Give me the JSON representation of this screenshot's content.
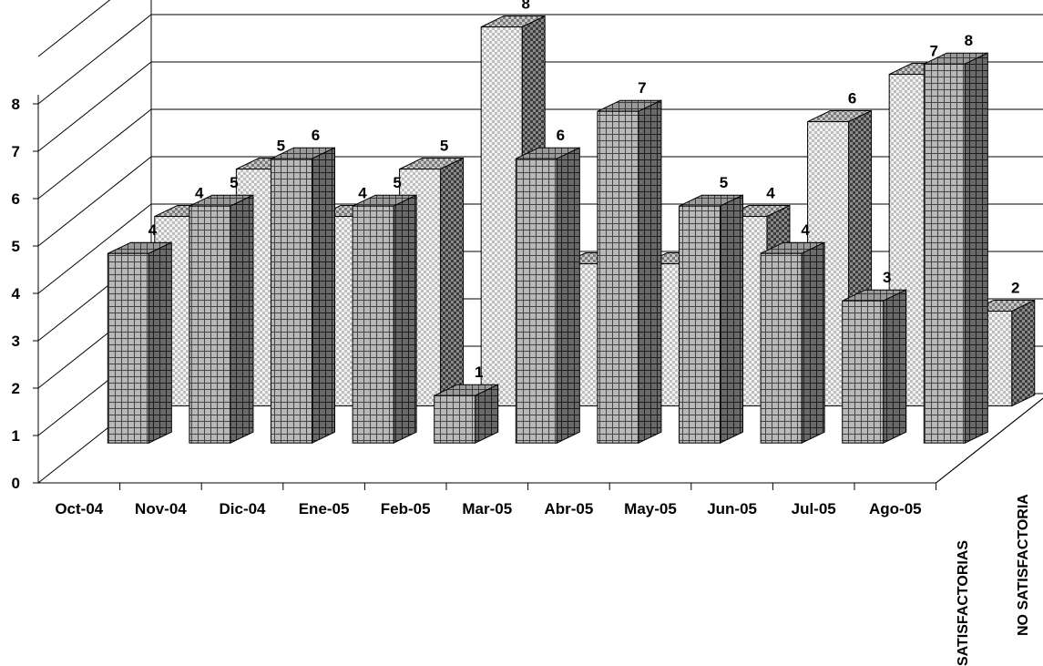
{
  "chart_data": {
    "type": "bar",
    "subtype": "3d-clustered-depth",
    "categories": [
      "Oct-04",
      "Nov-04",
      "Dic-04",
      "Ene-05",
      "Feb-05",
      "Mar-05",
      "Abr-05",
      "May-05",
      "Jun-05",
      "Jul-05",
      "Ago-05"
    ],
    "series": [
      {
        "name": "SATISFACTORIAS",
        "values": [
          4,
          5,
          6,
          5,
          1,
          6,
          7,
          5,
          4,
          3,
          8
        ]
      },
      {
        "name": "NO SATISFACTORIA",
        "values": [
          4,
          5,
          4,
          5,
          8,
          3,
          3,
          4,
          6,
          7,
          2
        ]
      }
    ],
    "yticks": [
      "0",
      "1",
      "2",
      "3",
      "4",
      "5",
      "6",
      "7",
      "8"
    ],
    "ylim": [
      0,
      8
    ],
    "grid": true,
    "title": "",
    "xlabel": "",
    "ylabel": ""
  },
  "colors": {
    "front_series_face": "#b4b4b4",
    "back_series_face": "#dcdcdc",
    "side_face": "#5a5a5a",
    "top_face": "#8c8c8c"
  }
}
